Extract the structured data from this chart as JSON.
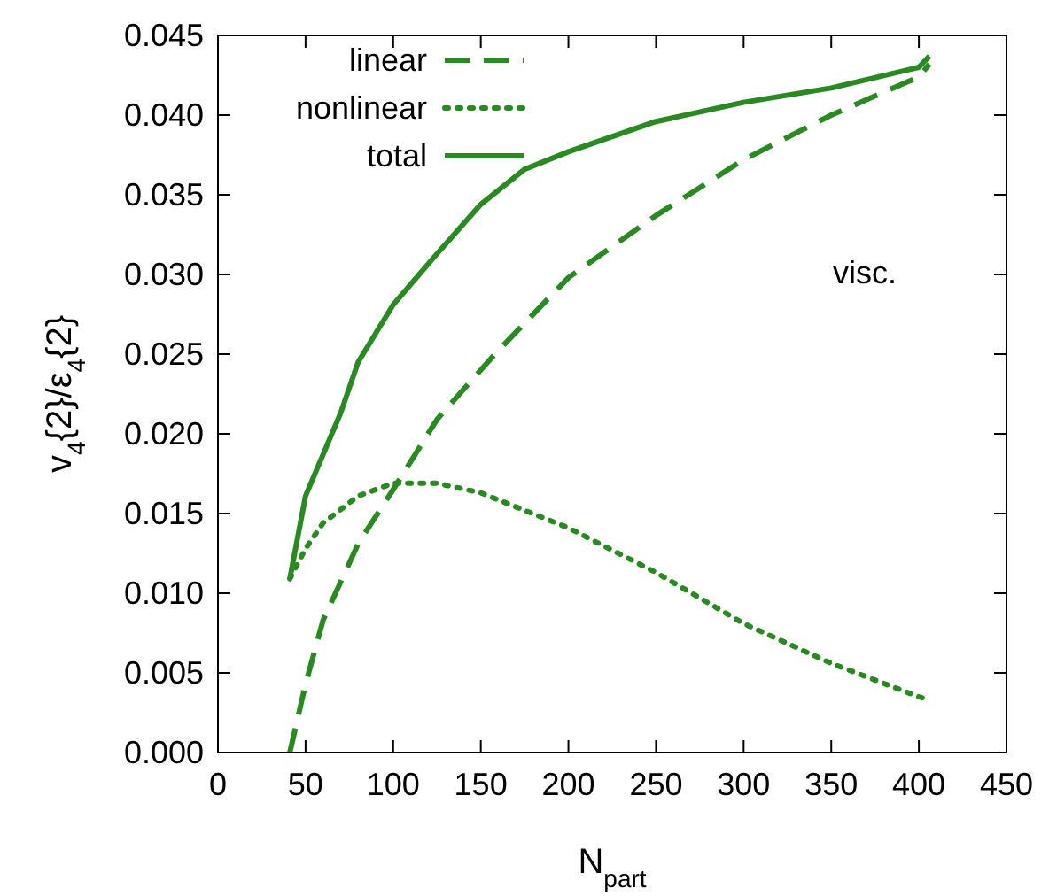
{
  "chart_data": {
    "type": "line",
    "xlabel": "N$_{part}$",
    "ylabel": "v$_{4}${2}/ε$_{4}${2}",
    "xlim": [
      0,
      450
    ],
    "ylim": [
      0,
      0.045
    ],
    "xticks": [
      0,
      50,
      100,
      150,
      200,
      250,
      300,
      350,
      400,
      450
    ],
    "yticks": [
      {
        "value": 0,
        "label": "0.000"
      },
      {
        "value": 0.005,
        "label": "0.005"
      },
      {
        "value": 0.01,
        "label": "0.010"
      },
      {
        "value": 0.015,
        "label": "0.015"
      },
      {
        "value": 0.02,
        "label": "0.020"
      },
      {
        "value": 0.025,
        "label": "0.025"
      },
      {
        "value": 0.03,
        "label": "0.030"
      },
      {
        "value": 0.035,
        "label": "0.035"
      },
      {
        "value": 0.04,
        "label": "0.040"
      },
      {
        "value": 0.045,
        "label": "0.045"
      }
    ],
    "legend": "top left",
    "grid": false,
    "annotations": [
      "visc."
    ],
    "series": [
      {
        "name": "linear",
        "color": "#2a8a22",
        "line_style": "dashed",
        "x": [
          41,
          50,
          60,
          80,
          100,
          125,
          158,
          200,
          250,
          300,
          350,
          400,
          406
        ],
        "values": [
          0,
          0.0043,
          0.0083,
          0.0131,
          0.0165,
          0.0209,
          0.025,
          0.0298,
          0.0337,
          0.0372,
          0.04,
          0.0424,
          0.0432
        ]
      },
      {
        "name": "nonlinear",
        "color": "#2a8a22",
        "line_style": "dotted",
        "x": [
          41,
          50,
          60,
          80,
          100,
          125,
          150,
          200,
          250,
          300,
          350,
          400,
          406
        ],
        "values": [
          0.0109,
          0.0128,
          0.0144,
          0.0161,
          0.0169,
          0.0169,
          0.0163,
          0.0141,
          0.0113,
          0.0081,
          0.0056,
          0.0035,
          0.0033
        ]
      },
      {
        "name": "total",
        "color": "#2a8a22",
        "line_style": "solid",
        "x": [
          41,
          50,
          60,
          70,
          80,
          100,
          125,
          150,
          175,
          200,
          250,
          300,
          350,
          400,
          406
        ],
        "values": [
          0.0109,
          0.0161,
          0.0187,
          0.0213,
          0.0245,
          0.0281,
          0.0313,
          0.0344,
          0.0366,
          0.0377,
          0.0396,
          0.0408,
          0.0417,
          0.043,
          0.0437
        ]
      }
    ]
  }
}
